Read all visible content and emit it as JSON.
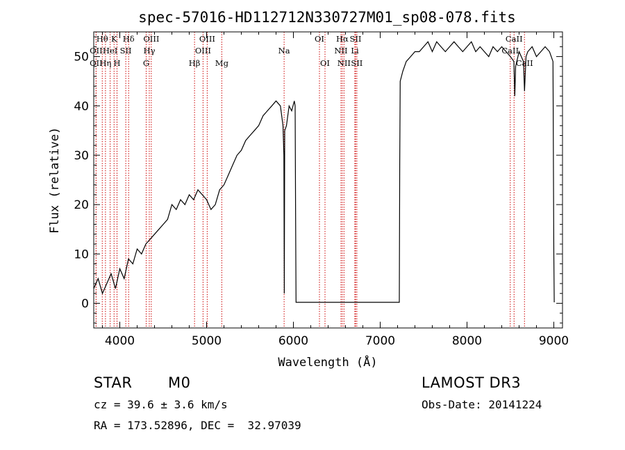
{
  "chart_data": {
    "type": "line",
    "title": "spec-57016-HD112712N330727M01_sp08-078.fits",
    "xlabel": "Wavelength (Å)",
    "ylabel": "Flux (relative)",
    "xlim": [
      3700,
      9100
    ],
    "ylim": [
      -5,
      55
    ],
    "xticks": [
      4000,
      5000,
      6000,
      7000,
      8000,
      9000
    ],
    "yticks": [
      0,
      10,
      20,
      30,
      40,
      50
    ],
    "grid": false,
    "line_color": "#000000",
    "marker_color": "#cc0000",
    "spectrum": {
      "x": [
        3700,
        3750,
        3800,
        3850,
        3900,
        3950,
        4000,
        4050,
        4100,
        4150,
        4200,
        4250,
        4300,
        4350,
        4400,
        4450,
        4500,
        4550,
        4600,
        4650,
        4700,
        4750,
        4800,
        4850,
        4900,
        4950,
        5000,
        5050,
        5100,
        5150,
        5200,
        5250,
        5300,
        5350,
        5400,
        5450,
        5500,
        5550,
        5600,
        5650,
        5700,
        5750,
        5800,
        5850,
        5880,
        5890,
        5895,
        5900,
        5920,
        5950,
        5980,
        6010,
        6020,
        6025,
        6030,
        7220,
        7225,
        7230,
        7260,
        7300,
        7350,
        7400,
        7450,
        7500,
        7550,
        7600,
        7650,
        7700,
        7750,
        7800,
        7850,
        7900,
        7950,
        8000,
        8050,
        8100,
        8150,
        8200,
        8250,
        8300,
        8350,
        8400,
        8450,
        8500,
        8540,
        8550,
        8560,
        8600,
        8650,
        8662,
        8680,
        8700,
        8750,
        8800,
        8850,
        8900,
        8950,
        8990,
        9000,
        9005
      ],
      "y": [
        3,
        5,
        2,
        4,
        6,
        3,
        7,
        5,
        9,
        8,
        11,
        10,
        12,
        13,
        14,
        15,
        16,
        17,
        20,
        19,
        21,
        20,
        22,
        21,
        23,
        22,
        21,
        19,
        20,
        23,
        24,
        26,
        28,
        30,
        31,
        33,
        34,
        35,
        36,
        38,
        39,
        40,
        41,
        40,
        36,
        30,
        2,
        35,
        36,
        40,
        39,
        41,
        40,
        20,
        0.2,
        0.2,
        28,
        45,
        47,
        49,
        50,
        51,
        51,
        52,
        53,
        51,
        53,
        52,
        51,
        52,
        53,
        52,
        51,
        52,
        53,
        51,
        52,
        51,
        50,
        52,
        51,
        52,
        51,
        50,
        49,
        42,
        48,
        51,
        49,
        43,
        50,
        51,
        52,
        50,
        51,
        52,
        51,
        49,
        10,
        0.2
      ]
    },
    "lines": [
      {
        "label": "Hθ",
        "x": 3798,
        "row": 0
      },
      {
        "label": "K",
        "x": 3934,
        "row": 0
      },
      {
        "label": "Hδ",
        "x": 4102,
        "row": 0
      },
      {
        "label": "OII",
        "x": 3727,
        "row": 1
      },
      {
        "label": "HeI",
        "x": 3889,
        "row": 1
      },
      {
        "label": "SII",
        "x": 4069,
        "row": 1
      },
      {
        "label": "OII",
        "x": 3727,
        "row": 2
      },
      {
        "label": "Hη",
        "x": 3835,
        "row": 2
      },
      {
        "label": "H",
        "x": 3968,
        "row": 2
      },
      {
        "label": "OIII",
        "x": 4363,
        "row": 0
      },
      {
        "label": "Hγ",
        "x": 4340,
        "row": 1
      },
      {
        "label": "G",
        "x": 4304,
        "row": 2
      },
      {
        "label": "OIII",
        "x": 5007,
        "row": 0
      },
      {
        "label": "OIII",
        "x": 4959,
        "row": 1
      },
      {
        "label": "Hβ",
        "x": 4861,
        "row": 2
      },
      {
        "label": "Mg",
        "x": 5175,
        "row": 2
      },
      {
        "label": "Na",
        "x": 5893,
        "row": 1
      },
      {
        "label": "OI",
        "x": 6300,
        "row": 0
      },
      {
        "label": "OI",
        "x": 6364,
        "row": 2
      },
      {
        "label": "Hα",
        "x": 6563,
        "row": 0
      },
      {
        "label": "SII",
        "x": 6716,
        "row": 0
      },
      {
        "label": "NII",
        "x": 6548,
        "row": 1
      },
      {
        "label": "Li",
        "x": 6708,
        "row": 1
      },
      {
        "label": "NII",
        "x": 6583,
        "row": 2
      },
      {
        "label": "SII",
        "x": 6731,
        "row": 2
      },
      {
        "label": "CaII",
        "x": 8542,
        "row": 0
      },
      {
        "label": "CaII",
        "x": 8498,
        "row": 1
      },
      {
        "label": "CaII",
        "x": 8662,
        "row": 2
      }
    ]
  },
  "info": {
    "class": "STAR",
    "subclass": "M0",
    "survey": "LAMOST DR3",
    "cz": "cz = 39.6 ± 3.6 km/s",
    "obs_date": "Obs-Date: 20141224",
    "coords": "RA = 173.52896, DEC =  32.97039"
  }
}
